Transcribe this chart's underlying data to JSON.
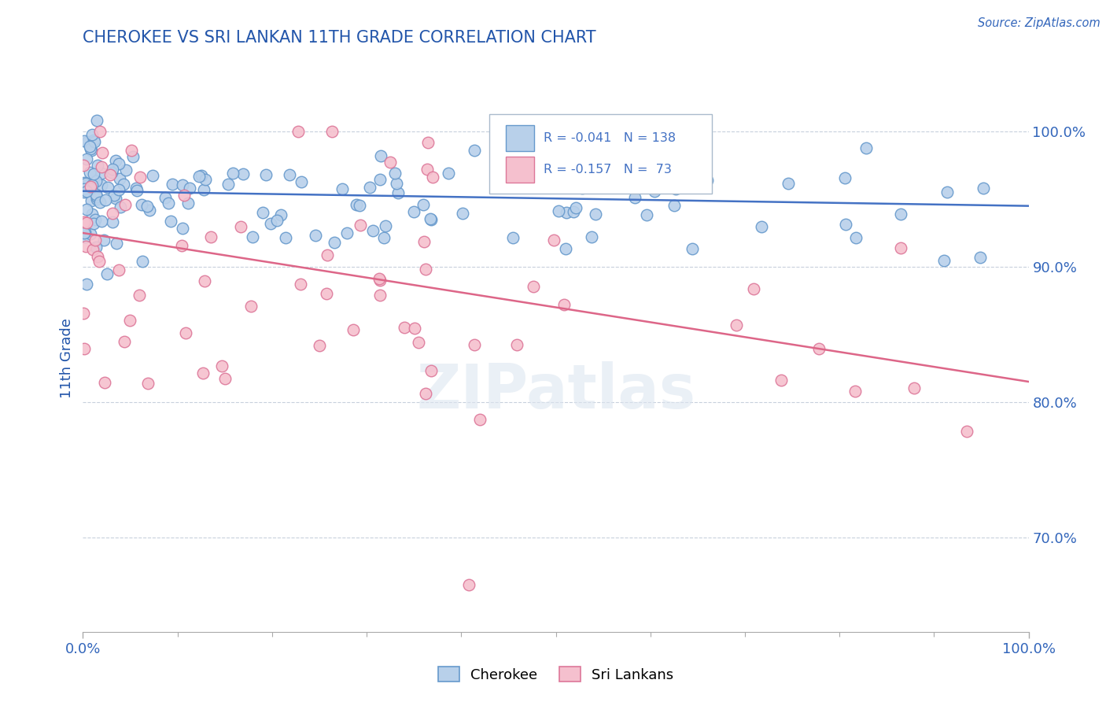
{
  "title": "CHEROKEE VS SRI LANKAN 11TH GRADE CORRELATION CHART",
  "source_text": "Source: ZipAtlas.com",
  "ylabel": "11th Grade",
  "x_tick_labels": [
    "0.0%",
    "100.0%"
  ],
  "x_tick_positions": [
    0.0,
    100.0
  ],
  "y_tick_labels": [
    "70.0%",
    "80.0%",
    "90.0%",
    "100.0%"
  ],
  "y_tick_positions": [
    70.0,
    80.0,
    90.0,
    100.0
  ],
  "xlim": [
    0.0,
    100.0
  ],
  "ylim": [
    63.0,
    103.5
  ],
  "cherokee_color": "#b8d0ea",
  "cherokee_edge_color": "#6699cc",
  "srilankan_color": "#f5c0ce",
  "srilankan_edge_color": "#dd7799",
  "cherokee_R": -0.041,
  "cherokee_N": 138,
  "srilankan_R": -0.157,
  "srilankan_N": 73,
  "trend_blue_color": "#4472c4",
  "trend_pink_color": "#dd6688",
  "grid_color": "#c8d0dc",
  "background_color": "#ffffff",
  "title_color": "#2255aa",
  "axis_label_color": "#2255aa",
  "tick_label_color": "#3366bb",
  "legend_label_cherokee": "Cherokee",
  "legend_label_srilankan": "Sri Lankans",
  "blue_trend_x0": 0,
  "blue_trend_y0": 95.6,
  "blue_trend_x1": 100,
  "blue_trend_y1": 94.5,
  "pink_trend_x0": 0,
  "pink_trend_y0": 92.5,
  "pink_trend_x1": 100,
  "pink_trend_y1": 81.5
}
